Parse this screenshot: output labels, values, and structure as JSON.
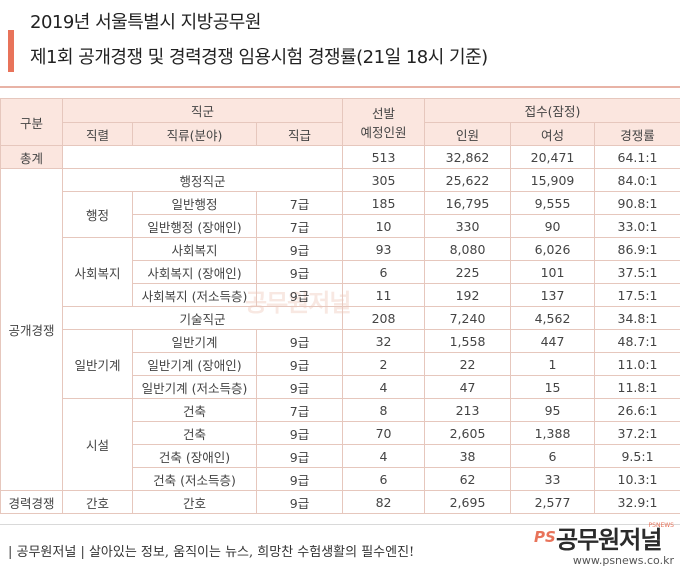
{
  "title": {
    "line1": "2019년 서울특별시 지방공무원",
    "line2": "제1회 공개경쟁 및 경력경쟁 임용시험 경쟁률(21일 18시 기준)"
  },
  "header": {
    "gubun": "구분",
    "jikgun": "직군",
    "jikryeol": "직렬",
    "jikryu": "직류(분야)",
    "jikgeup": "직급",
    "seonbal_l1": "선발",
    "seonbal_l2": "예정인원",
    "jeopsu": "접수(잠정)",
    "inwon": "인원",
    "yeoseong": "여성",
    "gyeongjaeng": "경쟁률"
  },
  "total": {
    "label": "총계",
    "seonbal": "513",
    "inwon": "32,862",
    "yeoseong": "20,471",
    "rate": "64.1:1"
  },
  "sections": {
    "gongchae": "공개경쟁",
    "gyeongryeok": "경력경쟁"
  },
  "groups": {
    "haengjeong": "행정",
    "sahoebokji": "사회복지",
    "ilbangigye": "일반기계",
    "siseol": "시설",
    "ganho": "간호"
  },
  "rows": [
    {
      "name": "행정직군",
      "grade": "",
      "seonbal": "305",
      "inwon": "25,622",
      "yeoseong": "15,909",
      "rate": "84.0:1"
    },
    {
      "name": "일반행정",
      "grade": "7급",
      "seonbal": "185",
      "inwon": "16,795",
      "yeoseong": "9,555",
      "rate": "90.8:1"
    },
    {
      "name": "일반행정 (장애인)",
      "grade": "7급",
      "seonbal": "10",
      "inwon": "330",
      "yeoseong": "90",
      "rate": "33.0:1"
    },
    {
      "name": "사회복지",
      "grade": "9급",
      "seonbal": "93",
      "inwon": "8,080",
      "yeoseong": "6,026",
      "rate": "86.9:1"
    },
    {
      "name": "사회복지 (장애인)",
      "grade": "9급",
      "seonbal": "6",
      "inwon": "225",
      "yeoseong": "101",
      "rate": "37.5:1"
    },
    {
      "name": "사회복지 (저소득층)",
      "grade": "9급",
      "seonbal": "11",
      "inwon": "192",
      "yeoseong": "137",
      "rate": "17.5:1"
    },
    {
      "name": "기술직군",
      "grade": "",
      "seonbal": "208",
      "inwon": "7,240",
      "yeoseong": "4,562",
      "rate": "34.8:1"
    },
    {
      "name": "일반기계",
      "grade": "9급",
      "seonbal": "32",
      "inwon": "1,558",
      "yeoseong": "447",
      "rate": "48.7:1"
    },
    {
      "name": "일반기계 (장애인)",
      "grade": "9급",
      "seonbal": "2",
      "inwon": "22",
      "yeoseong": "1",
      "rate": "11.0:1"
    },
    {
      "name": "일반기계 (저소득층)",
      "grade": "9급",
      "seonbal": "4",
      "inwon": "47",
      "yeoseong": "15",
      "rate": "11.8:1"
    },
    {
      "name": "건축",
      "grade": "7급",
      "seonbal": "8",
      "inwon": "213",
      "yeoseong": "95",
      "rate": "26.6:1"
    },
    {
      "name": "건축",
      "grade": "9급",
      "seonbal": "70",
      "inwon": "2,605",
      "yeoseong": "1,388",
      "rate": "37.2:1"
    },
    {
      "name": "건축 (장애인)",
      "grade": "9급",
      "seonbal": "4",
      "inwon": "38",
      "yeoseong": "6",
      "rate": "9.5:1"
    },
    {
      "name": "건축 (저소득층)",
      "grade": "9급",
      "seonbal": "6",
      "inwon": "62",
      "yeoseong": "33",
      "rate": "10.3:1"
    },
    {
      "name": "간호",
      "grade": "9급",
      "seonbal": "82",
      "inwon": "2,695",
      "yeoseong": "2,577",
      "rate": "32.9:1"
    }
  ],
  "footer": {
    "tagline": "| 공무원저널 | 살아있는 정보, 움직이는 뉴스, 희망찬 수험생활의 필수엔진!",
    "logo_ps": "PS",
    "logo_name": "공무원저널",
    "logo_sub": "PSNEWS",
    "site": "www.psnews.co.kr"
  },
  "colors": {
    "accent": "#e8735a",
    "header_bg": "#fbe6df",
    "border": "#e6c7bd"
  }
}
